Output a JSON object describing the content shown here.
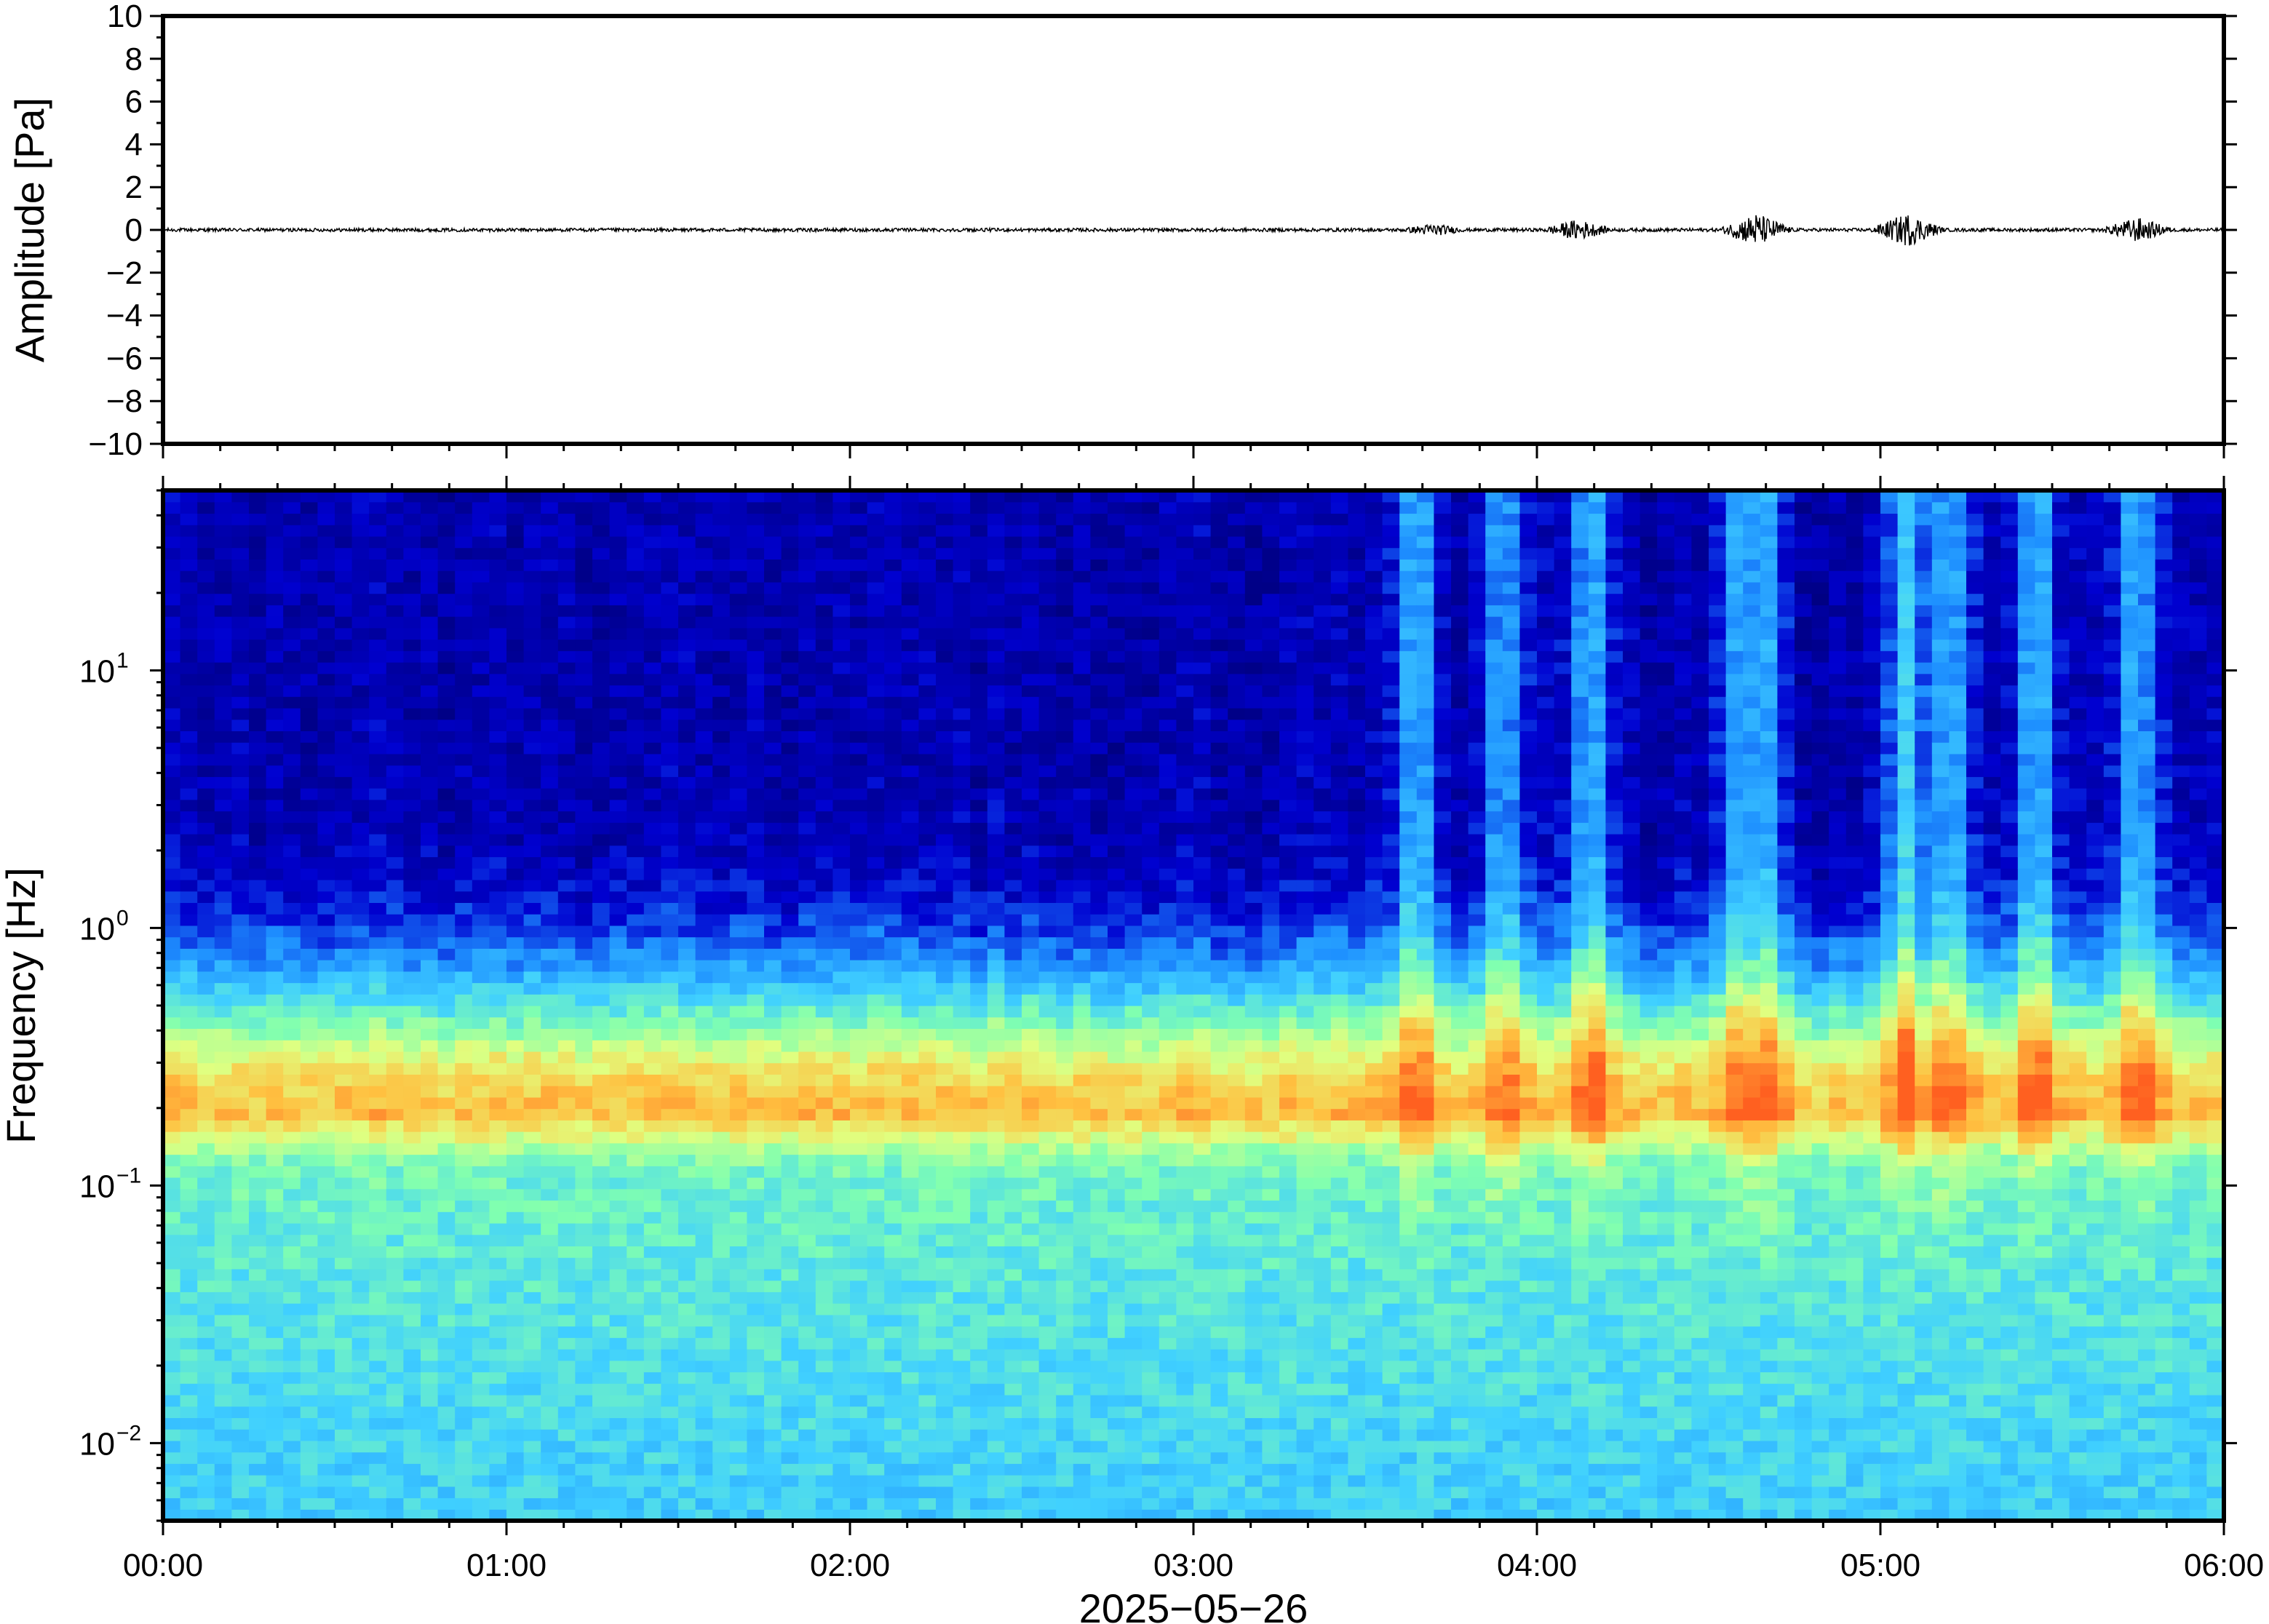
{
  "chart_data": [
    {
      "type": "line",
      "ylabel": "Amplitude [Pa]",
      "ylim": [
        -10,
        10
      ],
      "yticks": [
        10,
        8,
        6,
        4,
        2,
        0,
        -2,
        -4,
        -6,
        -8,
        -10
      ],
      "ytick_labels": [
        "10",
        "8",
        "6",
        "4",
        "2",
        "0",
        "−2",
        "−4",
        "−6",
        "−8",
        "−10"
      ],
      "x_hours": [
        0,
        6
      ],
      "baseline": 0,
      "noise_level": 0.08,
      "bursts": [
        {
          "t_hours": 3.7,
          "max_amplitude": 0.3
        },
        {
          "t_hours": 4.12,
          "max_amplitude": 0.5
        },
        {
          "t_hours": 4.64,
          "max_amplitude": 0.8
        },
        {
          "t_hours": 5.08,
          "max_amplitude": 0.8
        },
        {
          "t_hours": 5.75,
          "max_amplitude": 0.6
        }
      ]
    },
    {
      "type": "heatmap",
      "ylabel": "Frequency [Hz]",
      "yscale": "log",
      "ylim": [
        0.005,
        50
      ],
      "yticks": [
        0.01,
        0.1,
        1,
        10
      ],
      "ytick_labels": [
        {
          "base": "10",
          "exp": "−2"
        },
        {
          "base": "10",
          "exp": "−1"
        },
        {
          "base": "10",
          "exp": "0"
        },
        {
          "base": "10",
          "exp": "1"
        }
      ],
      "xlabel": "2025−05−26",
      "xticks": [
        "00:00",
        "01:00",
        "02:00",
        "03:00",
        "04:00",
        "05:00",
        "06:00"
      ],
      "x_hours": [
        0,
        6
      ],
      "colormap": "jet",
      "colors": [
        "#000080",
        "#0000d0",
        "#1e90ff",
        "#40d0ff",
        "#80ffb0",
        "#e0ff80",
        "#ffc040",
        "#ff6020"
      ],
      "microseism_band_hz": 0.18,
      "high_activity_hours": [
        3.65,
        3.9,
        4.15,
        4.6,
        4.66,
        5.08,
        5.2,
        5.45,
        5.75
      ]
    }
  ]
}
